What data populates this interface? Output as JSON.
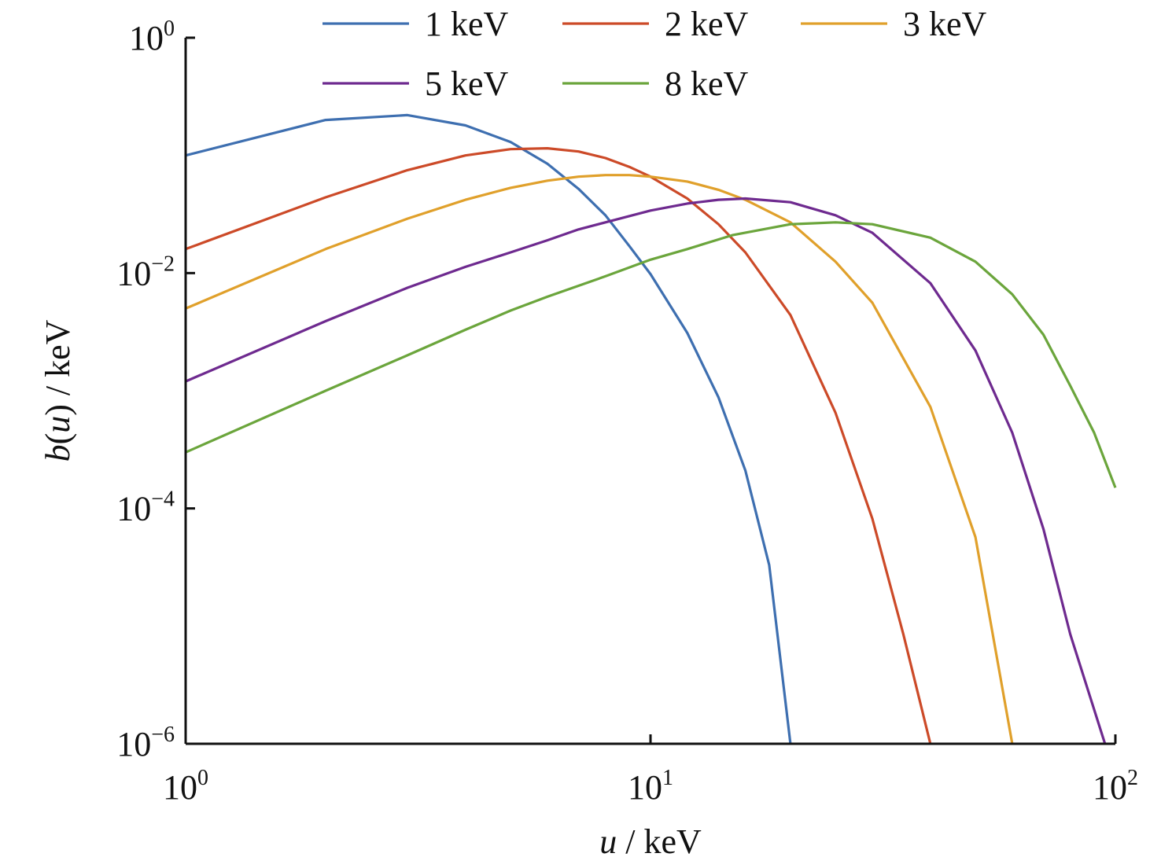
{
  "chart_data": {
    "type": "line",
    "title": "",
    "xlabel": {
      "italic": "u",
      "rest": " / keV"
    },
    "ylabel": {
      "italic": "b",
      "paren_open": "(",
      "italic2": "u",
      "paren_close": ")",
      "rest": " / keV"
    },
    "x_scale": "log",
    "y_scale": "log",
    "xlim": [
      1,
      100
    ],
    "ylim": [
      1e-06,
      1
    ],
    "grid": false,
    "legend_position": "top",
    "x_ticks": [
      {
        "base": "10",
        "exp": "0",
        "value": 1
      },
      {
        "base": "10",
        "exp": "1",
        "value": 10
      },
      {
        "base": "10",
        "exp": "2",
        "value": 100
      }
    ],
    "y_ticks": [
      {
        "base": "10",
        "exp": "0",
        "value": 1
      },
      {
        "base": "10",
        "exp": "−2",
        "value": 0.01
      },
      {
        "base": "10",
        "exp": "−4",
        "value": 0.0001
      },
      {
        "base": "10",
        "exp": "−6",
        "value": 1e-06
      }
    ],
    "series": [
      {
        "name": "1 keV",
        "color": "#3E6FB0",
        "x": [
          1,
          2,
          3,
          4,
          5,
          6,
          7,
          8,
          9,
          10,
          12,
          14,
          16,
          18,
          20
        ],
        "y": [
          0.1,
          0.2,
          0.22,
          0.18,
          0.13,
          0.085,
          0.052,
          0.031,
          0.017,
          0.0098,
          0.0031,
          0.00088,
          0.00021,
          3.3e-05,
          1e-06
        ]
      },
      {
        "name": "2 keV",
        "color": "#CC4A28",
        "x": [
          1,
          2,
          3,
          4,
          5,
          6,
          7,
          8,
          9,
          10,
          12,
          14,
          16,
          20,
          25,
          30,
          35,
          40
        ],
        "y": [
          0.016,
          0.044,
          0.075,
          0.1,
          0.113,
          0.115,
          0.108,
          0.095,
          0.08,
          0.066,
          0.043,
          0.026,
          0.015,
          0.0044,
          0.00065,
          8.2e-05,
          8.5e-06,
          1e-06
        ]
      },
      {
        "name": "3 keV",
        "color": "#E0A02B",
        "x": [
          1,
          2,
          3,
          4,
          5,
          6,
          7,
          8,
          9,
          10,
          12,
          14,
          16,
          20,
          25,
          30,
          40,
          50,
          60
        ],
        "y": [
          0.005,
          0.016,
          0.029,
          0.042,
          0.053,
          0.061,
          0.066,
          0.068,
          0.068,
          0.066,
          0.06,
          0.051,
          0.042,
          0.027,
          0.0125,
          0.0056,
          0.00073,
          5.7e-05,
          1e-06
        ]
      },
      {
        "name": "5 keV",
        "color": "#6E2A8F",
        "x": [
          1,
          2,
          3,
          4,
          5,
          6,
          7,
          8,
          10,
          12,
          14,
          16,
          20,
          25,
          30,
          40,
          50,
          60,
          70,
          80,
          95
        ],
        "y": [
          0.0012,
          0.0039,
          0.0075,
          0.0113,
          0.015,
          0.019,
          0.0235,
          0.027,
          0.034,
          0.039,
          0.042,
          0.043,
          0.04,
          0.031,
          0.022,
          0.0082,
          0.0022,
          0.00044,
          6.7e-05,
          8.5e-06,
          1e-06
        ]
      },
      {
        "name": "8 keV",
        "color": "#6BA53C",
        "x": [
          1,
          2,
          3,
          4,
          5,
          6,
          8,
          10,
          12,
          15,
          20,
          25,
          30,
          40,
          50,
          60,
          70,
          80,
          90,
          100
        ],
        "y": [
          0.0003,
          0.001,
          0.002,
          0.0033,
          0.0048,
          0.0063,
          0.0094,
          0.013,
          0.016,
          0.021,
          0.026,
          0.027,
          0.026,
          0.02,
          0.0125,
          0.0066,
          0.003,
          0.0011,
          0.00044,
          0.00015
        ]
      }
    ]
  }
}
